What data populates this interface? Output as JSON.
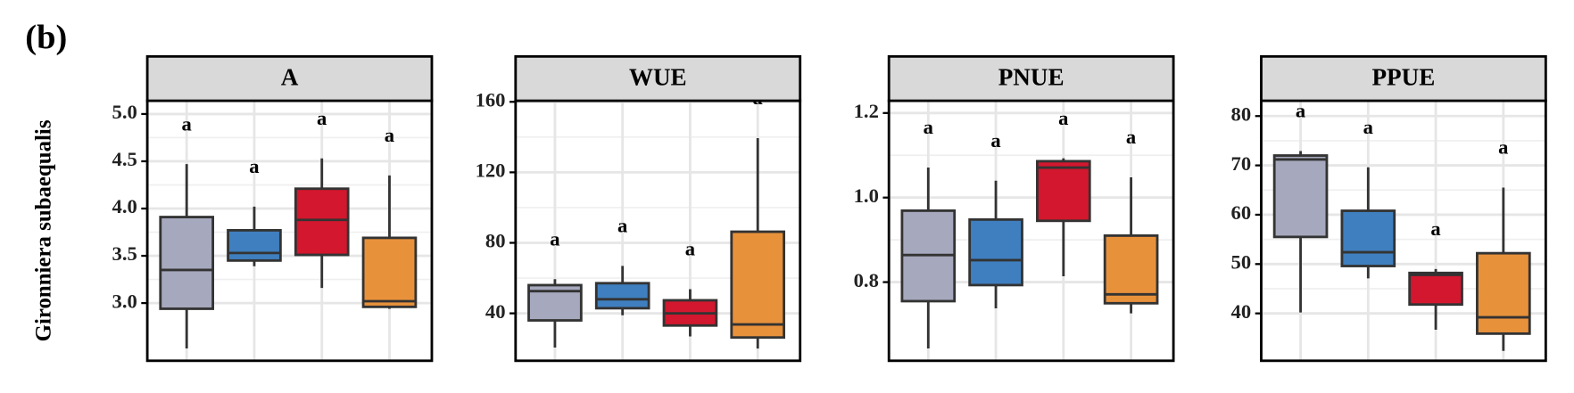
{
  "panel_label": "(b)",
  "chart_data": [
    {
      "type": "box",
      "title": "A",
      "ylabel": "Gironniera subaequalis",
      "ylim": [
        2.39,
        5.14
      ],
      "yticks": [
        {
          "value": 3,
          "label": "3.0"
        },
        3.5,
        {
          "value": 4,
          "label": "4.0"
        },
        4.5,
        {
          "value": 5,
          "label": "5.0"
        }
      ],
      "colors": [
        "#a6a8bd",
        "#3f7fbf",
        "#d3172e",
        "#e8913b"
      ],
      "boxes": [
        {
          "min": 2.52,
          "q1": 2.94,
          "median": 3.35,
          "q3": 3.91,
          "max": 4.47
        },
        {
          "min": 3.39,
          "q1": 3.45,
          "median": 3.53,
          "q3": 3.77,
          "max": 4.02
        },
        {
          "min": 3.16,
          "q1": 3.51,
          "median": 3.88,
          "q3": 4.21,
          "max": 4.53
        },
        {
          "min": 2.94,
          "q1": 2.96,
          "median": 3.02,
          "q3": 3.69,
          "max": 4.35
        }
      ],
      "letters": [
        "a",
        "a",
        "a",
        "a"
      ],
      "grid": true
    },
    {
      "type": "box",
      "title": "WUE",
      "ylim": [
        13.1,
        160.6
      ],
      "yticks": [
        40,
        80,
        120,
        160
      ],
      "colors": [
        "#a6a8bd",
        "#3f7fbf",
        "#d3172e",
        "#e8913b"
      ],
      "boxes": [
        {
          "min": 20.6,
          "q1": 36,
          "median": 52.6,
          "q3": 56,
          "max": 59.4
        },
        {
          "min": 38.9,
          "q1": 42.9,
          "median": 48,
          "q3": 57.1,
          "max": 66.9
        },
        {
          "min": 26.9,
          "q1": 33.1,
          "median": 40,
          "q3": 47.4,
          "max": 53.7
        },
        {
          "min": 20,
          "q1": 26.3,
          "median": 33.7,
          "q3": 86.3,
          "max": 139.4
        }
      ],
      "letters": [
        "a",
        "a",
        "a",
        "a"
      ],
      "grid": true
    },
    {
      "type": "box",
      "title": "PNUE",
      "ylim": [
        0.614,
        1.229
      ],
      "yticks": [
        0.8,
        {
          "value": 1,
          "label": "1.0"
        },
        1.2
      ],
      "colors": [
        "#a6a8bd",
        "#3f7fbf",
        "#d3172e",
        "#e8913b"
      ],
      "boxes": [
        {
          "min": 0.643,
          "q1": 0.755,
          "median": 0.864,
          "q3": 0.969,
          "max": 1.071
        },
        {
          "min": 0.738,
          "q1": 0.793,
          "median": 0.852,
          "q3": 0.948,
          "max": 1.04
        },
        {
          "min": 0.814,
          "q1": 0.945,
          "median": 1.071,
          "q3": 1.086,
          "max": 1.093
        },
        {
          "min": 0.726,
          "q1": 0.75,
          "median": 0.771,
          "q3": 0.91,
          "max": 1.048
        }
      ],
      "letters": [
        "a",
        "a",
        "a",
        "a"
      ],
      "grid": true
    },
    {
      "type": "box",
      "title": "PPUE",
      "ylim": [
        30.4,
        83.1
      ],
      "yticks": [
        40,
        50,
        60,
        70,
        80
      ],
      "colors": [
        "#a6a8bd",
        "#3f7fbf",
        "#d3172e",
        "#e8913b"
      ],
      "boxes": [
        {
          "min": 40.2,
          "q1": 55.5,
          "median": 71.2,
          "q3": 72,
          "max": 72.9
        },
        {
          "min": 47.1,
          "q1": 49.6,
          "median": 52.4,
          "q3": 60.8,
          "max": 69.6
        },
        {
          "min": 36.7,
          "q1": 41.8,
          "median": 47.8,
          "q3": 48.2,
          "max": 49
        },
        {
          "min": 32.4,
          "q1": 35.9,
          "median": 39.2,
          "q3": 52.2,
          "max": 65.5
        }
      ],
      "letters": [
        "a",
        "a",
        "a",
        "a"
      ],
      "grid": true
    }
  ]
}
